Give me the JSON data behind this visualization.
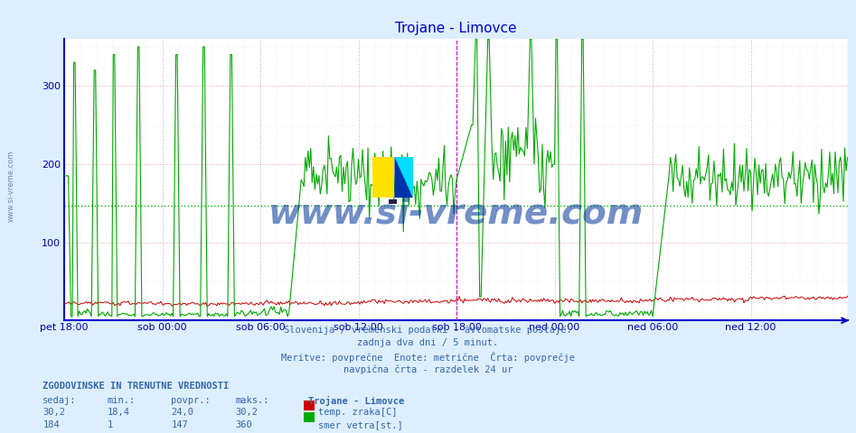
{
  "title": "Trojane - Limovce",
  "title_color": "#0000cc",
  "bg_color": "#ddeeff",
  "plot_bg_color": "#ffffff",
  "axis_color": "#0000cc",
  "grid_h_color": "#ffaaaa",
  "grid_v_color": "#aaaaff",
  "ylabel_color": "#0000aa",
  "xlabel_color": "#0000aa",
  "tick_color": "#0000aa",
  "line1_color": "#cc0000",
  "line2_color": "#00aa00",
  "hline_color": "#00bb00",
  "vline_color": "#cc00cc",
  "temp_avg": 24.0,
  "wind_avg": 147,
  "ymin": 0,
  "ymax": 360,
  "yticks": [
    100,
    200,
    300
  ],
  "n_points": 576,
  "subtitle_lines": [
    "Slovenija / vremenski podatki - avtomatske postaje.",
    "zadnja dva dni / 5 minut.",
    "Meritve: povprečne  Enote: metrične  Črta: povprečje",
    "navpična črta - razdelek 24 ur"
  ],
  "legend_title": "Trojane - Limovce",
  "legend_entries": [
    {
      "label": "temp. zraka[C]",
      "color": "#cc0000"
    },
    {
      "label": "smer vetra[st.]",
      "color": "#00aa00"
    }
  ],
  "table_header": "ZGODOVINSKE IN TRENUTNE VREDNOSTI",
  "table_cols": [
    "sedaj:",
    "min.:",
    "povpr.:",
    "maks.:"
  ],
  "table_rows": [
    [
      "30,2",
      "18,4",
      "24,0",
      "30,2"
    ],
    [
      "184",
      "1",
      "147",
      "360"
    ]
  ],
  "xtick_labels": [
    "pet 18:00",
    "sob 00:00",
    "sob 06:00",
    "sob 12:00",
    "sob 18:00",
    "ned 00:00",
    "ned 06:00",
    "ned 12:00"
  ],
  "xtick_positions": [
    0,
    72,
    144,
    216,
    288,
    360,
    432,
    504
  ],
  "vline_positions": [
    288,
    575
  ],
  "hline_value": 147,
  "watermark": "www.si-vreme.com",
  "side_text": "www.si-vreme.com"
}
